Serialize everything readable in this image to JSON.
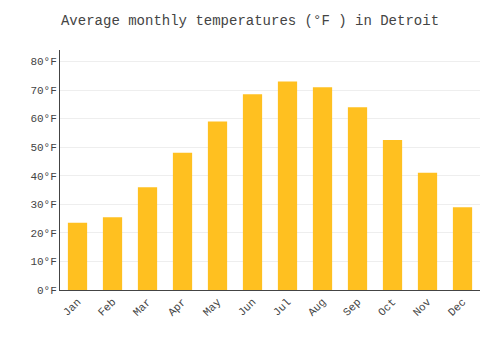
{
  "chart_data": {
    "type": "bar",
    "title": "Average monthly temperatures (°F ) in Detroit",
    "categories": [
      "Jan",
      "Feb",
      "Mar",
      "Apr",
      "May",
      "Jun",
      "Jul",
      "Aug",
      "Sep",
      "Oct",
      "Nov",
      "Dec"
    ],
    "values": [
      23.5,
      25.5,
      36.0,
      48.0,
      59.0,
      68.5,
      73.0,
      71.0,
      64.0,
      52.5,
      41.0,
      29.0
    ],
    "color": "#FFC020",
    "ylim": [
      0,
      84
    ],
    "yticks": [
      {
        "value": 0,
        "label": "0°F"
      },
      {
        "value": 10,
        "label": "10°F"
      },
      {
        "value": 20,
        "label": "20°F"
      },
      {
        "value": 30,
        "label": "30°F"
      },
      {
        "value": 40,
        "label": "40°F"
      },
      {
        "value": 50,
        "label": "50°F"
      },
      {
        "value": 60,
        "label": "60°F"
      },
      {
        "value": 70,
        "label": "70°F"
      },
      {
        "value": 80,
        "label": "80°F"
      }
    ],
    "grid": true
  }
}
